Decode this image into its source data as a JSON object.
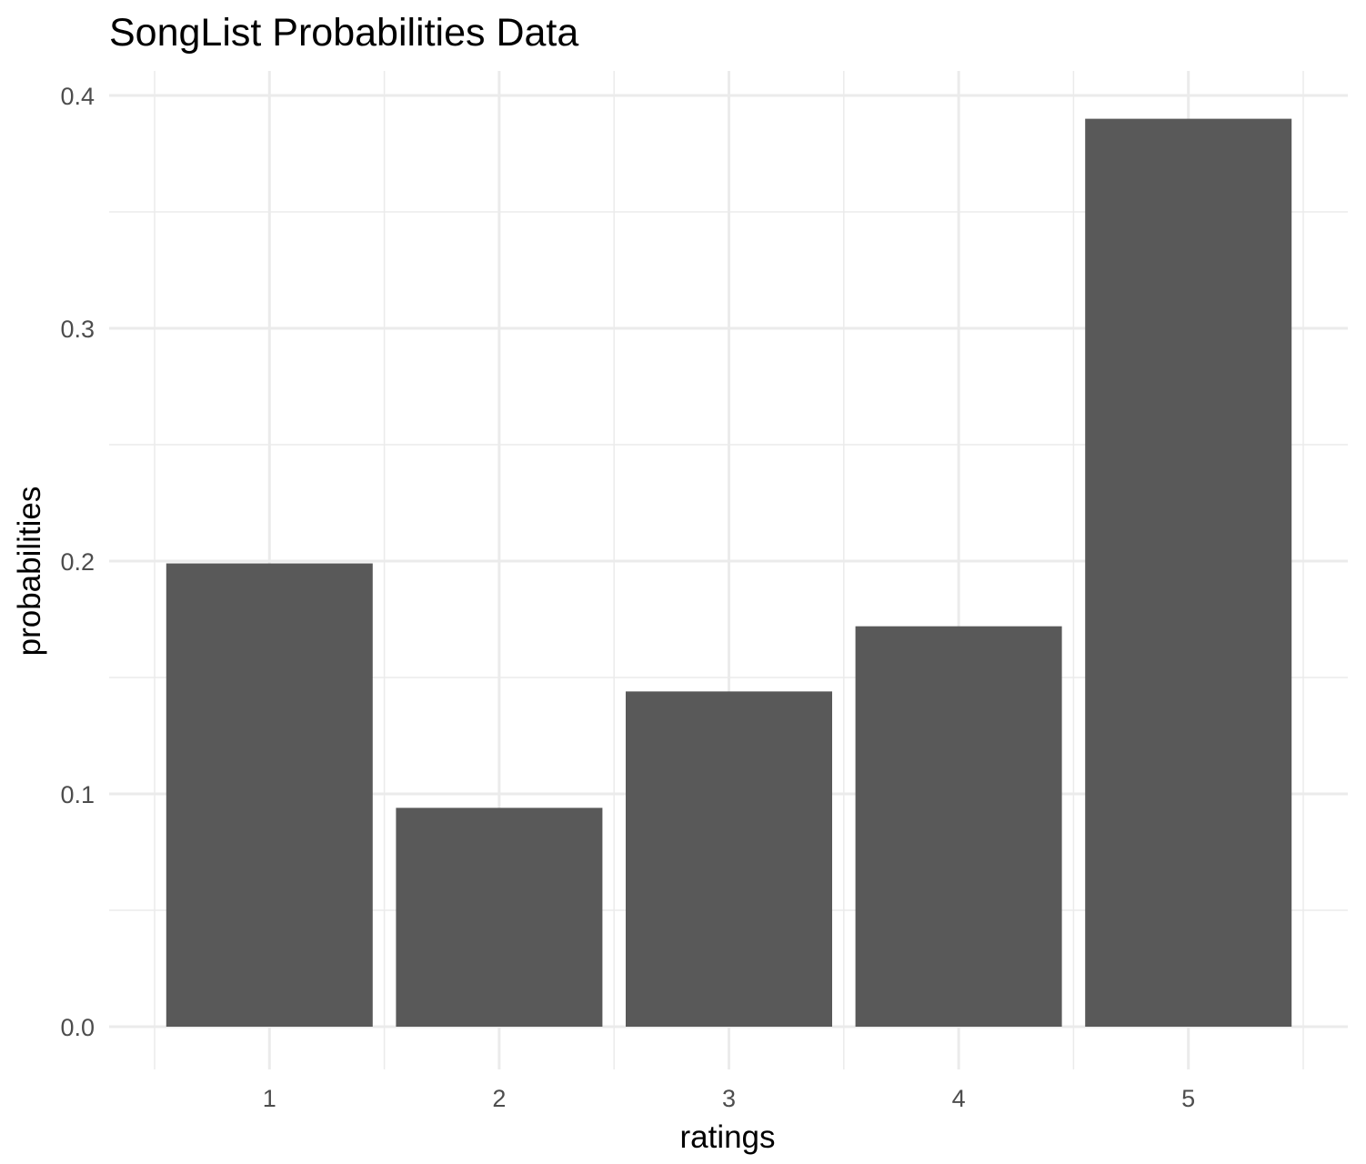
{
  "chart_data": {
    "type": "bar",
    "title": "SongList Probabilities Data",
    "xlabel": "ratings",
    "ylabel": "probabilities",
    "categories": [
      "1",
      "2",
      "3",
      "4",
      "5"
    ],
    "values": [
      0.199,
      0.094,
      0.144,
      0.172,
      0.39
    ],
    "ylim": [
      0,
      0.41
    ],
    "yticks": [
      0.0,
      0.1,
      0.2,
      0.3,
      0.4
    ],
    "ytick_labels": [
      "0.0",
      "0.1",
      "0.2",
      "0.3",
      "0.4"
    ],
    "bar_color": "#595959",
    "grid": true,
    "legend": "none"
  }
}
